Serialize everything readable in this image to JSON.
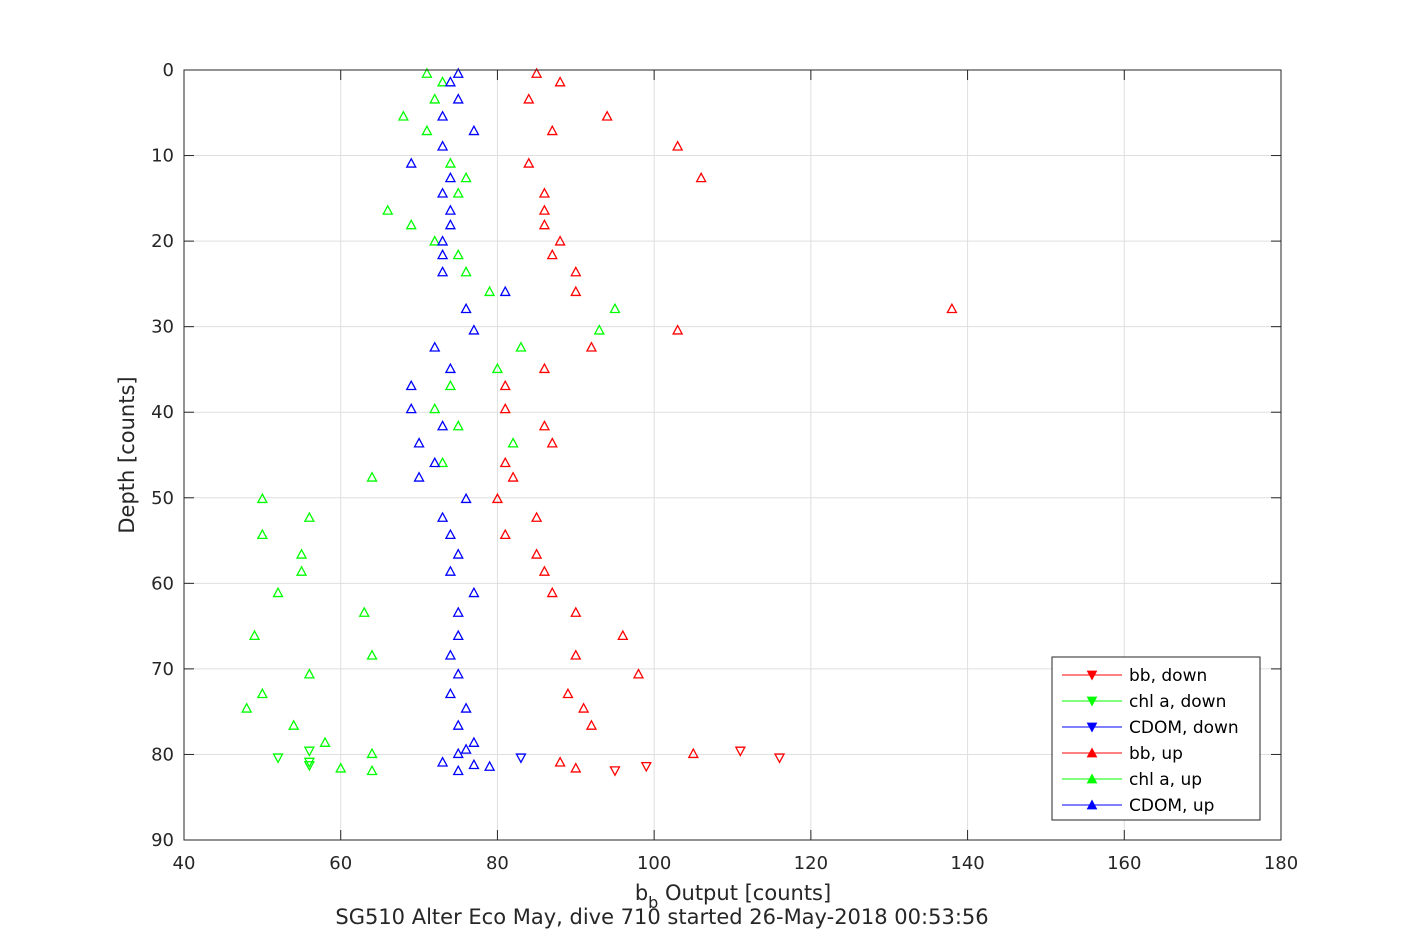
{
  "chart_data": {
    "type": "scatter",
    "xlabel_main": "b",
    "xlabel_sub": "b",
    "xlabel_rest": " Output [counts]",
    "ylabel": "Depth [counts]",
    "subtitle": "SG510 Alter Eco May, dive 710 started 26-May-2018 00:53:56",
    "xlim": [
      40,
      180
    ],
    "ylim": [
      0,
      90
    ],
    "y_reversed": true,
    "x_ticks": [
      40,
      60,
      80,
      100,
      120,
      140,
      160,
      180
    ],
    "y_ticks": [
      0,
      10,
      20,
      30,
      40,
      50,
      60,
      70,
      80,
      90
    ],
    "grid": true,
    "legend_position": "bottom-right",
    "series": [
      {
        "name": "bb, down",
        "color": "#ff0000",
        "marker": "triangle-down",
        "points": [
          [
            111,
            79.6
          ],
          [
            116,
            80.4
          ],
          [
            99,
            81.4
          ],
          [
            95,
            81.9
          ]
        ]
      },
      {
        "name": "chl a, down",
        "color": "#00ff00",
        "marker": "triangle-down",
        "points": [
          [
            56,
            79.6
          ],
          [
            52,
            80.4
          ],
          [
            56,
            80.9
          ],
          [
            56,
            81.3
          ]
        ]
      },
      {
        "name": "CDOM, down",
        "color": "#0000ff",
        "marker": "triangle-down",
        "points": [
          [
            83,
            80.4
          ]
        ]
      },
      {
        "name": "bb, up",
        "color": "#ff0000",
        "marker": "triangle-up",
        "points": [
          [
            85,
            0.4
          ],
          [
            88,
            1.4
          ],
          [
            84,
            3.4
          ],
          [
            94,
            5.4
          ],
          [
            87,
            7.1
          ],
          [
            103,
            8.9
          ],
          [
            84,
            10.9
          ],
          [
            106,
            12.6
          ],
          [
            86,
            14.4
          ],
          [
            86,
            16.4
          ],
          [
            86,
            18.1
          ],
          [
            88,
            20.0
          ],
          [
            87,
            21.6
          ],
          [
            90,
            23.6
          ],
          [
            90,
            25.9
          ],
          [
            138,
            27.9
          ],
          [
            103,
            30.4
          ],
          [
            92,
            32.4
          ],
          [
            86,
            34.9
          ],
          [
            81,
            36.9
          ],
          [
            81,
            39.6
          ],
          [
            86,
            41.6
          ],
          [
            87,
            43.6
          ],
          [
            81,
            45.9
          ],
          [
            82,
            47.6
          ],
          [
            80,
            50.1
          ],
          [
            85,
            52.3
          ],
          [
            81,
            54.3
          ],
          [
            85,
            56.6
          ],
          [
            86,
            58.6
          ],
          [
            87,
            61.1
          ],
          [
            90,
            63.4
          ],
          [
            96,
            66.1
          ],
          [
            90,
            68.4
          ],
          [
            98,
            70.6
          ],
          [
            89,
            72.9
          ],
          [
            91,
            74.6
          ],
          [
            92,
            76.6
          ],
          [
            105,
            79.9
          ],
          [
            88,
            80.9
          ],
          [
            90,
            81.6
          ]
        ]
      },
      {
        "name": "chl a, up",
        "color": "#00ff00",
        "marker": "triangle-up",
        "points": [
          [
            71,
            0.4
          ],
          [
            73,
            1.4
          ],
          [
            72,
            3.4
          ],
          [
            68,
            5.4
          ],
          [
            71,
            7.1
          ],
          [
            74,
            10.9
          ],
          [
            76,
            12.6
          ],
          [
            75,
            14.4
          ],
          [
            66,
            16.4
          ],
          [
            69,
            18.1
          ],
          [
            72,
            20.0
          ],
          [
            75,
            21.6
          ],
          [
            76,
            23.6
          ],
          [
            79,
            25.9
          ],
          [
            95,
            27.9
          ],
          [
            93,
            30.4
          ],
          [
            83,
            32.4
          ],
          [
            80,
            34.9
          ],
          [
            74,
            36.9
          ],
          [
            72,
            39.6
          ],
          [
            75,
            41.6
          ],
          [
            82,
            43.6
          ],
          [
            73,
            45.9
          ],
          [
            64,
            47.6
          ],
          [
            50,
            50.1
          ],
          [
            56,
            52.3
          ],
          [
            50,
            54.3
          ],
          [
            55,
            56.6
          ],
          [
            55,
            58.6
          ],
          [
            52,
            61.1
          ],
          [
            63,
            63.4
          ],
          [
            49,
            66.1
          ],
          [
            64,
            68.4
          ],
          [
            56,
            70.6
          ],
          [
            50,
            72.9
          ],
          [
            48,
            74.6
          ],
          [
            54,
            76.6
          ],
          [
            58,
            78.6
          ],
          [
            64,
            79.9
          ],
          [
            60,
            81.6
          ],
          [
            64,
            81.9
          ]
        ]
      },
      {
        "name": "CDOM, up",
        "color": "#0000ff",
        "marker": "triangle-up",
        "points": [
          [
            75,
            0.4
          ],
          [
            74,
            1.4
          ],
          [
            75,
            3.4
          ],
          [
            73,
            5.4
          ],
          [
            77,
            7.1
          ],
          [
            73,
            8.9
          ],
          [
            69,
            10.9
          ],
          [
            74,
            12.6
          ],
          [
            73,
            14.4
          ],
          [
            74,
            16.4
          ],
          [
            74,
            18.1
          ],
          [
            73,
            20.0
          ],
          [
            73,
            21.6
          ],
          [
            73,
            23.6
          ],
          [
            81,
            25.9
          ],
          [
            76,
            27.9
          ],
          [
            77,
            30.4
          ],
          [
            72,
            32.4
          ],
          [
            74,
            34.9
          ],
          [
            69,
            36.9
          ],
          [
            69,
            39.6
          ],
          [
            73,
            41.6
          ],
          [
            70,
            43.6
          ],
          [
            72,
            45.9
          ],
          [
            70,
            47.6
          ],
          [
            76,
            50.1
          ],
          [
            73,
            52.3
          ],
          [
            74,
            54.3
          ],
          [
            75,
            56.6
          ],
          [
            74,
            58.6
          ],
          [
            77,
            61.1
          ],
          [
            75,
            63.4
          ],
          [
            75,
            66.1
          ],
          [
            74,
            68.4
          ],
          [
            75,
            70.6
          ],
          [
            74,
            72.9
          ],
          [
            76,
            74.6
          ],
          [
            75,
            76.6
          ],
          [
            77,
            78.6
          ],
          [
            76,
            79.4
          ],
          [
            75,
            79.9
          ],
          [
            73,
            80.9
          ],
          [
            77,
            81.2
          ],
          [
            79,
            81.4
          ],
          [
            75,
            81.9
          ]
        ]
      }
    ]
  }
}
